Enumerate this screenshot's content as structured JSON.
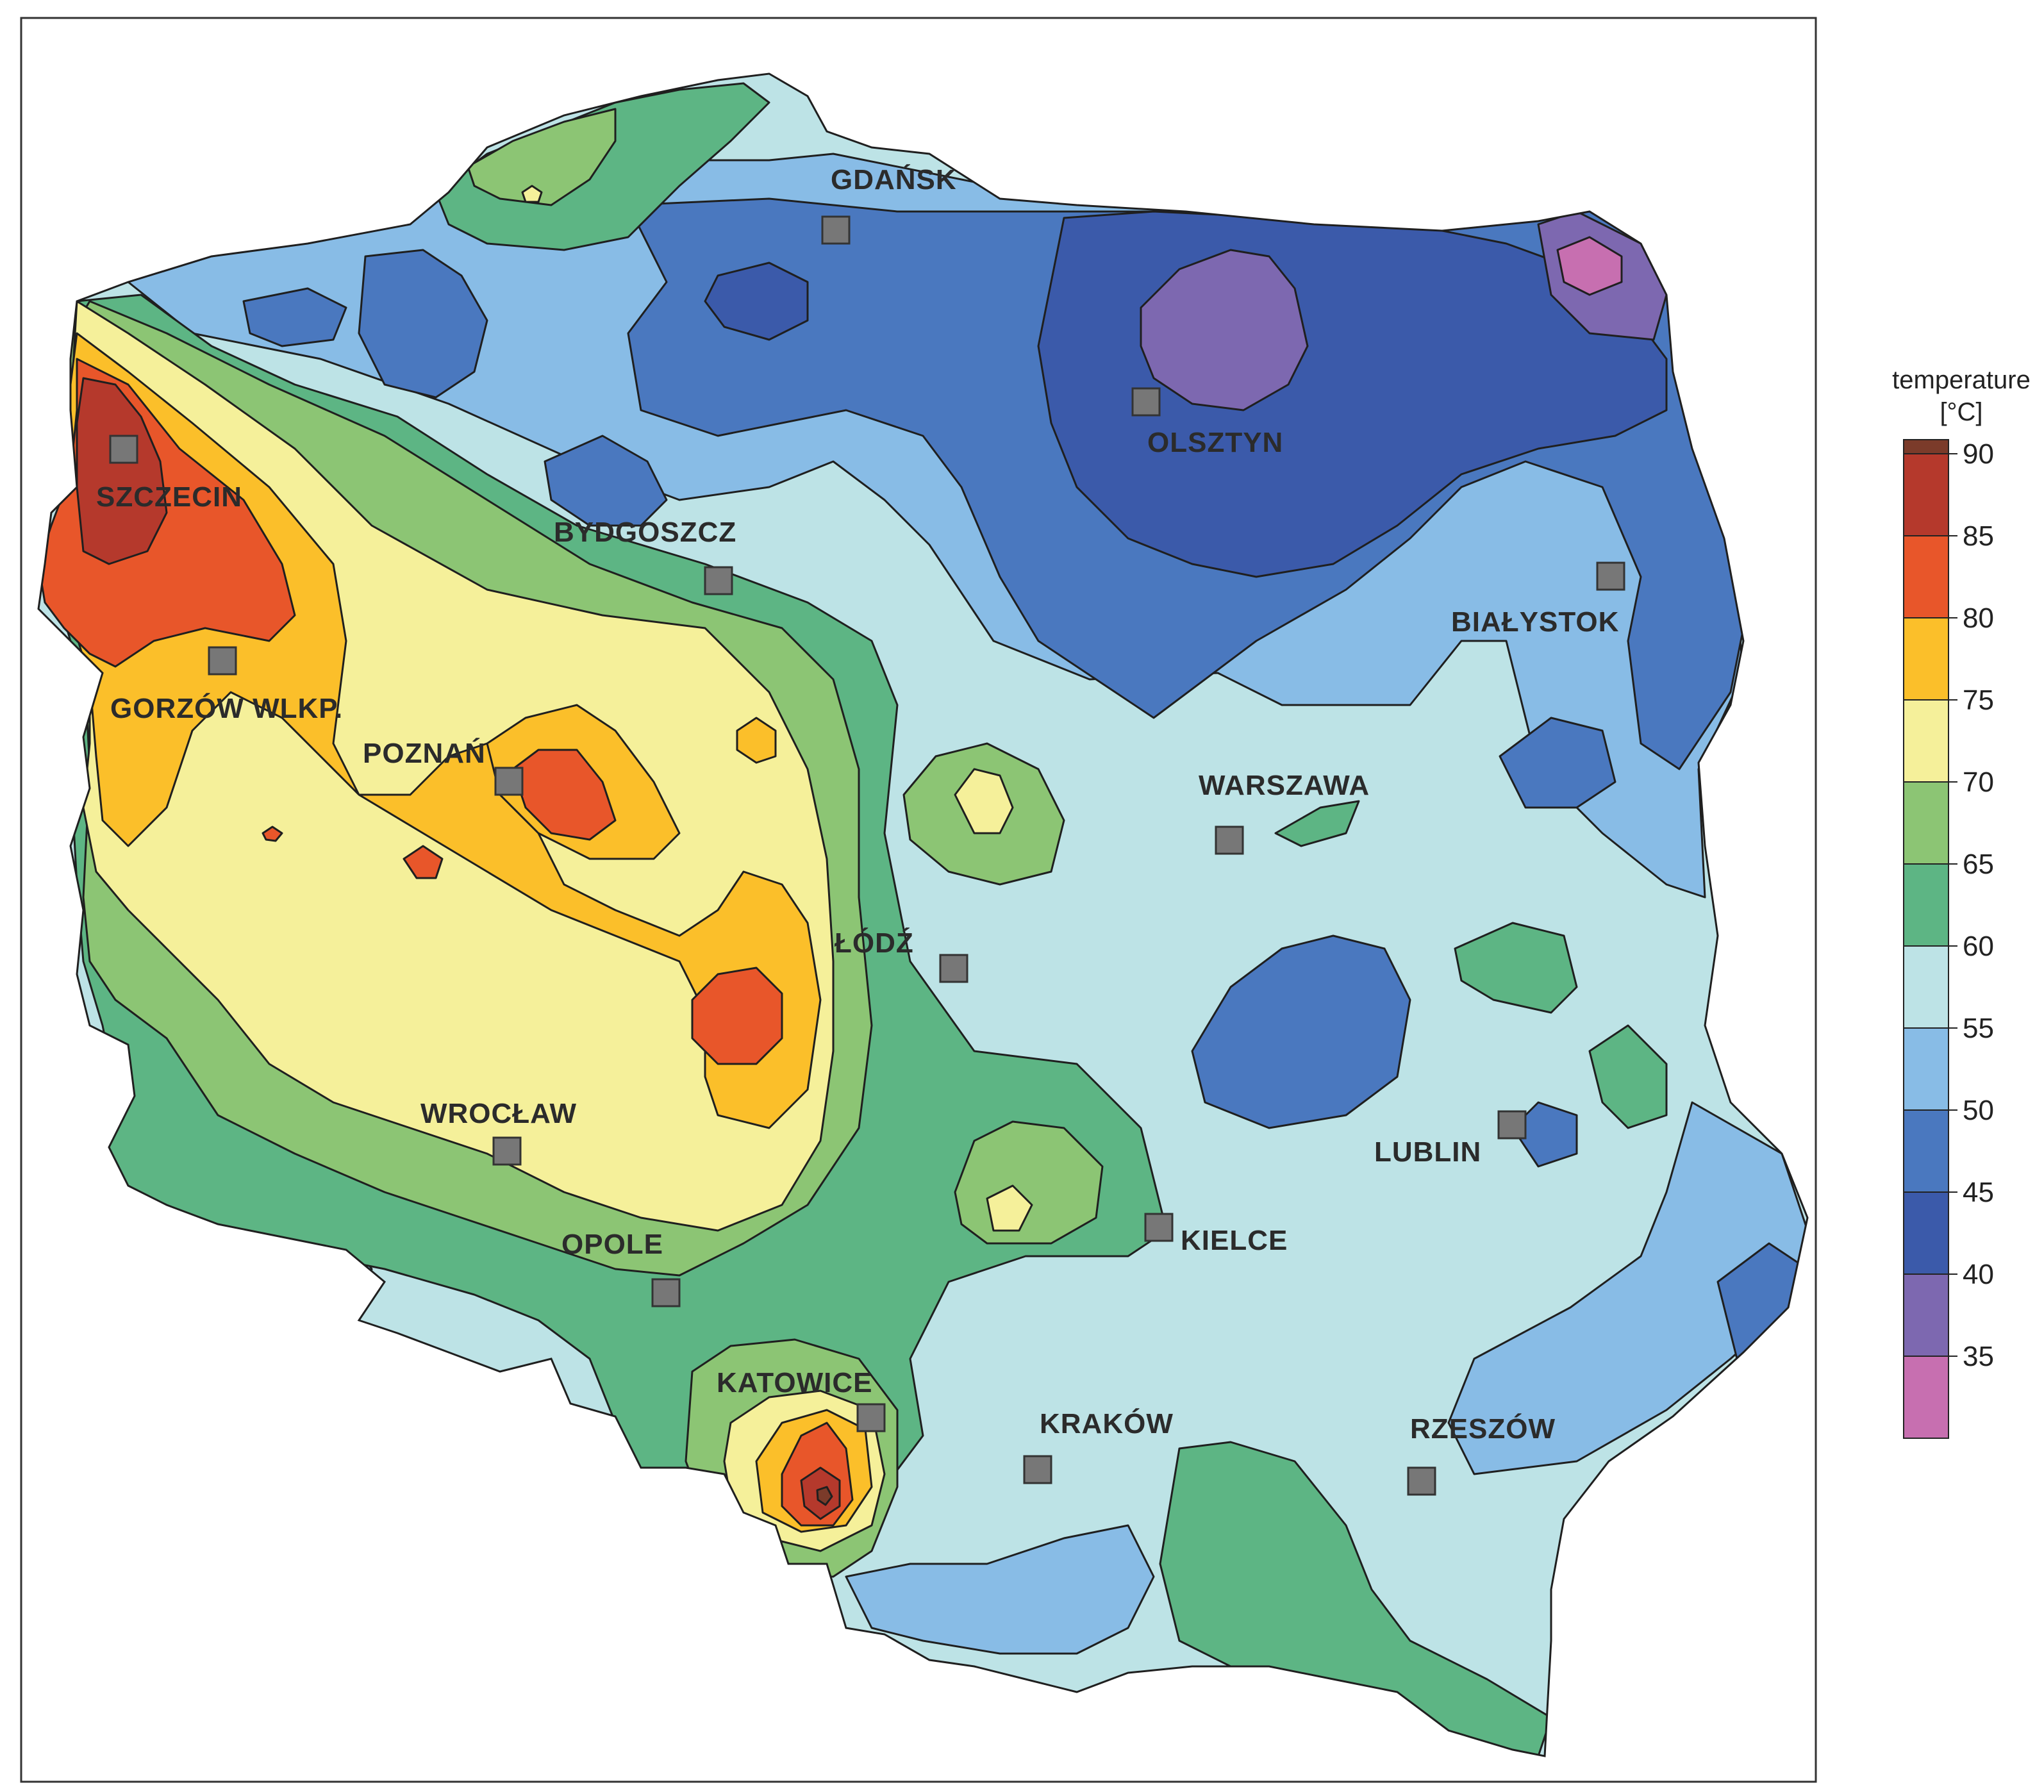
{
  "map": {
    "cities": [
      {
        "id": "gdansk",
        "name": "GDAŃSK"
      },
      {
        "id": "olsztyn",
        "name": "OLSZTYN"
      },
      {
        "id": "szczecin",
        "name": "SZCZECIN"
      },
      {
        "id": "bydgoszcz",
        "name": "BYDGOSZCZ"
      },
      {
        "id": "bialystok",
        "name": "BIAŁYSTOK"
      },
      {
        "id": "gorzow",
        "name": "GORZÓW WLKP."
      },
      {
        "id": "poznan",
        "name": "POZNAŃ"
      },
      {
        "id": "warszawa",
        "name": "WARSZAWA"
      },
      {
        "id": "lodz",
        "name": "ŁÓDŹ"
      },
      {
        "id": "wroclaw",
        "name": "WROCŁAW"
      },
      {
        "id": "lublin",
        "name": "LUBLIN"
      },
      {
        "id": "kielce",
        "name": "KIELCE"
      },
      {
        "id": "opole",
        "name": "OPOLE"
      },
      {
        "id": "katowice",
        "name": "KATOWICE"
      },
      {
        "id": "krakow",
        "name": "KRAKÓW"
      },
      {
        "id": "rzeszow",
        "name": "RZESZÓW"
      }
    ]
  },
  "legend": {
    "title_line1": "temperature",
    "title_line2": "[°C]",
    "bands": [
      {
        "range": "above 90",
        "color": "#7b3b2a"
      },
      {
        "range": "85-90",
        "color": "#b5392c"
      },
      {
        "range": "80-85",
        "color": "#e8562a"
      },
      {
        "range": "75-80",
        "color": "#fbbf2a"
      },
      {
        "range": "70-75",
        "color": "#f5f09a"
      },
      {
        "range": "65-70",
        "color": "#8cc574"
      },
      {
        "range": "60-65",
        "color": "#5db584"
      },
      {
        "range": "55-60",
        "color": "#bde3e6"
      },
      {
        "range": "50-55",
        "color": "#88bce6"
      },
      {
        "range": "45-50",
        "color": "#4a78bf"
      },
      {
        "range": "40-45",
        "color": "#3b5aaa"
      },
      {
        "range": "35-40",
        "color": "#7d68b0"
      },
      {
        "range": "below 35",
        "color": "#c76fb0"
      }
    ],
    "ticks": [
      "90",
      "85",
      "80",
      "75",
      "70",
      "65",
      "60",
      "55",
      "50",
      "45",
      "40",
      "35"
    ]
  }
}
